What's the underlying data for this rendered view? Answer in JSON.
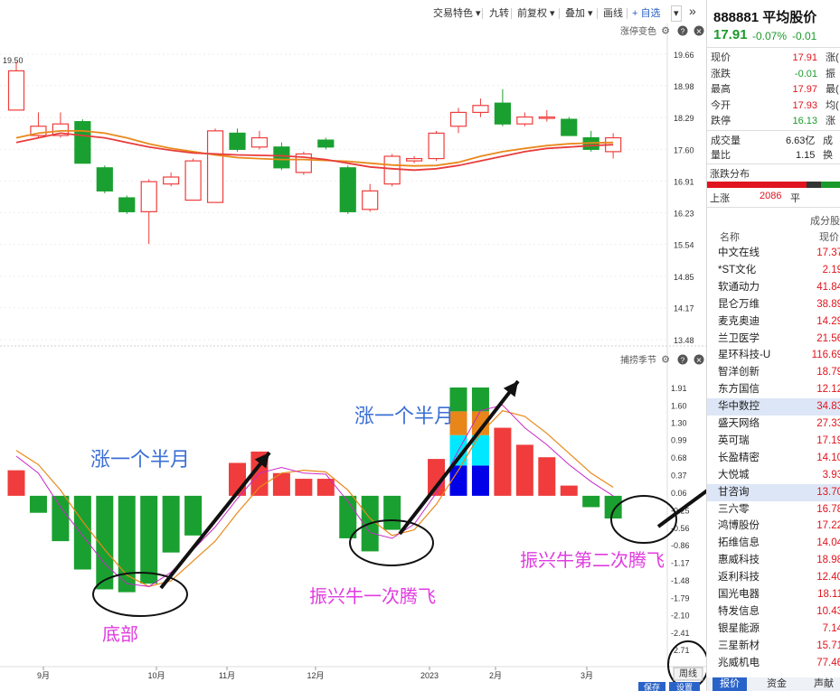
{
  "toolbar": {
    "items": [
      "交易特色 ▾",
      "九转",
      "前复权 ▾",
      "叠加 ▾",
      "画线",
      "+ 自选",
      "▾",
      "»"
    ]
  },
  "main_chart": {
    "indicator_label": "涨停变色",
    "price_ticks": [
      "19.66",
      "18.98",
      "18.29",
      "17.60",
      "16.91",
      "16.23",
      "15.54",
      "14.85",
      "14.17",
      "13.48"
    ],
    "high_marker": "19.50",
    "candles": [
      {
        "o": 18.45,
        "c": 19.3,
        "h": 19.5,
        "l": 18.45
      },
      {
        "o": 17.9,
        "c": 18.1,
        "h": 18.4,
        "l": 17.85
      },
      {
        "o": 17.9,
        "c": 18.15,
        "h": 18.4,
        "l": 17.85
      },
      {
        "o": 18.2,
        "c": 17.3,
        "h": 18.25,
        "l": 17.3
      },
      {
        "o": 17.2,
        "c": 16.7,
        "h": 17.25,
        "l": 16.65
      },
      {
        "o": 16.55,
        "c": 16.25,
        "h": 16.6,
        "l": 16.2
      },
      {
        "o": 16.25,
        "c": 16.9,
        "h": 16.95,
        "l": 15.55
      },
      {
        "o": 16.85,
        "c": 17.0,
        "h": 17.1,
        "l": 16.8
      },
      {
        "o": 16.5,
        "c": 17.35,
        "h": 17.4,
        "l": 16.5
      },
      {
        "o": 16.45,
        "c": 18.0,
        "h": 18.05,
        "l": 16.45
      },
      {
        "o": 17.95,
        "c": 17.6,
        "h": 18.05,
        "l": 17.55
      },
      {
        "o": 17.65,
        "c": 17.85,
        "h": 18.0,
        "l": 17.6
      },
      {
        "o": 17.65,
        "c": 17.2,
        "h": 17.75,
        "l": 17.15
      },
      {
        "o": 17.1,
        "c": 17.5,
        "h": 17.55,
        "l": 17.05
      },
      {
        "o": 17.8,
        "c": 17.65,
        "h": 17.85,
        "l": 17.6
      },
      {
        "o": 17.2,
        "c": 16.25,
        "h": 17.25,
        "l": 16.2
      },
      {
        "o": 16.3,
        "c": 16.7,
        "h": 16.85,
        "l": 16.25
      },
      {
        "o": 16.85,
        "c": 17.45,
        "h": 17.5,
        "l": 16.8
      },
      {
        "o": 17.35,
        "c": 17.4,
        "h": 17.45,
        "l": 17.3
      },
      {
        "o": 17.4,
        "c": 17.95,
        "h": 18.0,
        "l": 17.35
      },
      {
        "o": 18.1,
        "c": 18.4,
        "h": 18.5,
        "l": 17.95
      },
      {
        "o": 18.4,
        "c": 18.55,
        "h": 18.7,
        "l": 18.3
      },
      {
        "o": 18.6,
        "c": 18.15,
        "h": 18.9,
        "l": 18.1
      },
      {
        "o": 18.15,
        "c": 18.3,
        "h": 18.4,
        "l": 18.1
      },
      {
        "o": 18.3,
        "c": 18.3,
        "h": 18.45,
        "l": 18.2
      },
      {
        "o": 18.25,
        "c": 17.9,
        "h": 18.3,
        "l": 17.9
      },
      {
        "o": 17.85,
        "c": 17.6,
        "h": 18.0,
        "l": 17.55
      },
      {
        "o": 17.55,
        "c": 17.85,
        "h": 17.95,
        "l": 17.4
      }
    ],
    "ma_red": [
      17.75,
      17.85,
      17.95,
      17.9,
      17.85,
      17.75,
      17.65,
      17.58,
      17.52,
      17.5,
      17.48,
      17.47,
      17.46,
      17.43,
      17.38,
      17.3,
      17.22,
      17.18,
      17.15,
      17.18,
      17.25,
      17.35,
      17.45,
      17.55,
      17.62,
      17.65,
      17.68,
      17.7
    ],
    "ma_orange": [
      17.85,
      17.95,
      18.0,
      18.0,
      17.95,
      17.85,
      17.72,
      17.62,
      17.55,
      17.48,
      17.42,
      17.4,
      17.38,
      17.38,
      17.36,
      17.34,
      17.3,
      17.26,
      17.24,
      17.25,
      17.32,
      17.45,
      17.55,
      17.62,
      17.68,
      17.72,
      17.74,
      17.75
    ]
  },
  "sub_chart": {
    "indicator_label": "捕捞季节",
    "ticks": [
      "1.91",
      "1.60",
      "1.30",
      "0.99",
      "0.68",
      "0.37",
      "0.06",
      "-0.25",
      "-0.56",
      "-0.86",
      "-1.17",
      "-1.48",
      "-1.79",
      "-2.10",
      "-2.41",
      "-2.71"
    ],
    "bars": [
      0.45,
      -0.3,
      -0.8,
      -1.3,
      -1.65,
      -1.7,
      -1.55,
      -1.0,
      -0.7,
      0.0,
      0.58,
      0.78,
      0.4,
      0.3,
      0.3,
      -0.75,
      -0.98,
      -0.6,
      0.0,
      0.65,
      1.91,
      1.91,
      1.2,
      0.9,
      0.68,
      0.18,
      -0.2,
      -0.4
    ],
    "multi_color_segments": [
      "#0000e8",
      "#00e8ff",
      "#e8861a",
      "#1aa030"
    ],
    "line_magenta": [
      0.7,
      0.4,
      -0.2,
      -0.7,
      -1.2,
      -1.55,
      -1.6,
      -1.35,
      -0.95,
      -0.55,
      -0.05,
      0.4,
      0.5,
      0.4,
      0.38,
      -0.1,
      -0.65,
      -0.75,
      -0.5,
      0.05,
      0.8,
      1.5,
      1.6,
      1.2,
      0.9,
      0.55,
      0.25,
      0.0
    ],
    "line_orange": [
      0.8,
      0.55,
      0.1,
      -0.45,
      -0.95,
      -1.4,
      -1.6,
      -1.5,
      -1.15,
      -0.8,
      -0.3,
      0.15,
      0.4,
      0.45,
      0.42,
      0.1,
      -0.4,
      -0.7,
      -0.6,
      -0.15,
      0.45,
      1.1,
      1.5,
      1.4,
      1.1,
      0.75,
      0.4,
      0.15
    ]
  },
  "annotations": {
    "rise1": "涨一个半月",
    "rise2": "涨一个半月",
    "bottom": "底部",
    "first_fly": "振兴牛一次腾飞",
    "second_fly": "振兴牛第二次腾飞"
  },
  "x_axis": [
    "9月",
    "10月",
    "11月",
    "12月",
    "2023",
    "2月",
    "3月"
  ],
  "period_button": "周线",
  "bottom_buttons": [
    "保存",
    "设置"
  ],
  "stock": {
    "code_name": "888881 平均股价",
    "price": "17.91",
    "change_pct": "-0.07%",
    "change_abs": "-0.01",
    "quote": [
      {
        "label": "现价",
        "value": "17.91",
        "side": "涨("
      },
      {
        "label": "涨跌",
        "value": "-0.01",
        "side": "振"
      },
      {
        "label": "最高",
        "value": "17.97",
        "side": "最("
      },
      {
        "label": "今开",
        "value": "17.93",
        "side": "均("
      },
      {
        "label": "跌停",
        "value": "16.13",
        "side": "涨"
      }
    ],
    "volume_label": "成交量",
    "volume_value": "6.63亿",
    "volume_side": "成",
    "ratio_label": "量比",
    "ratio_value": "1.15",
    "ratio_side": "换",
    "dist_label": "涨跌分布",
    "up_label": "上涨",
    "up_count": "2086",
    "flat_label": "平",
    "components_label": "成分股",
    "col_name": "名称",
    "col_price": "现价",
    "components": [
      {
        "name": "中文在线",
        "price": "17.37"
      },
      {
        "name": "*ST文化",
        "price": "2.19"
      },
      {
        "name": "软通动力",
        "price": "41.84"
      },
      {
        "name": "昆仑万维",
        "price": "38.89"
      },
      {
        "name": "麦克奥迪",
        "price": "14.29"
      },
      {
        "name": "兰卫医学",
        "price": "21.56"
      },
      {
        "name": "星环科技-U",
        "price": "116.69"
      },
      {
        "name": "智洋创新",
        "price": "18.79"
      },
      {
        "name": "东方国信",
        "price": "12.12"
      },
      {
        "name": "华中数控",
        "price": "34.83"
      },
      {
        "name": "盛天网络",
        "price": "27.33"
      },
      {
        "name": "英可瑞",
        "price": "17.19"
      },
      {
        "name": "长盈精密",
        "price": "14.10"
      },
      {
        "name": "大悦城",
        "price": "3.93"
      },
      {
        "name": "甘咨询",
        "price": "13.70"
      },
      {
        "name": "三六零",
        "price": "16.78"
      },
      {
        "name": "鸿博股份",
        "price": "17.22"
      },
      {
        "name": "拓维信息",
        "price": "14.04"
      },
      {
        "name": "惠威科技",
        "price": "18.98"
      },
      {
        "name": "返利科技",
        "price": "12.40"
      },
      {
        "name": "国光电器",
        "price": "18.11"
      },
      {
        "name": "特发信息",
        "price": "10.43"
      },
      {
        "name": "银星能源",
        "price": "7.14"
      },
      {
        "name": "三星新材",
        "price": "15.71"
      },
      {
        "name": "兆威机电",
        "price": "77.46"
      }
    ],
    "tabs": [
      "报价",
      "资金",
      "声献"
    ]
  },
  "colors": {
    "up": "#f03c3c",
    "down": "#1aa030",
    "annotation_blue": "#3b6fd6",
    "annotation_magenta": "#e03ce0"
  }
}
